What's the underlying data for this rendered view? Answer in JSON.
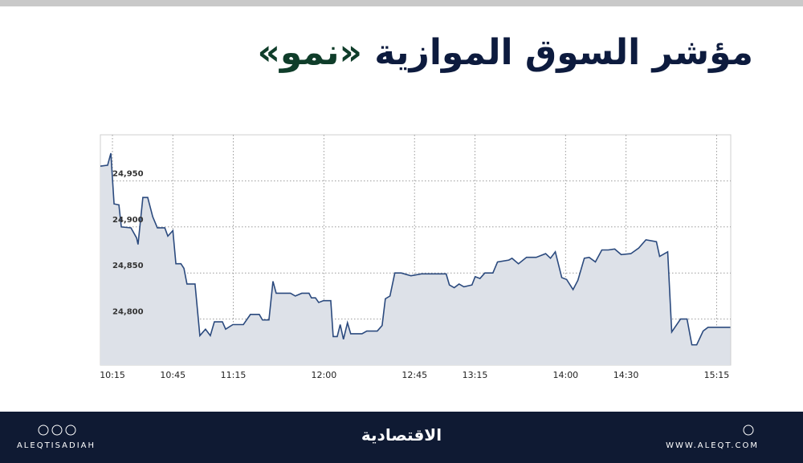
{
  "chart_data": {
    "type": "line",
    "title": [
      "مؤشر السوق الموازية",
      "«نمو»"
    ],
    "x": [
      609,
      612.6,
      614.2,
      615.8,
      618.2,
      619.4,
      624.2,
      627,
      627.7,
      630.1,
      632.5,
      635,
      637.3,
      641,
      642.5,
      645,
      646.5,
      649,
      650.5,
      652,
      656,
      658.4,
      661.2,
      663.6,
      665.6,
      669.6,
      671.2,
      674.8,
      680,
      683.5,
      687.9,
      689.5,
      692.7,
      694.7,
      696.3,
      703.4,
      705.8,
      709,
      712.6,
      713.8,
      715.8,
      717.4,
      719.8,
      723.4,
      724.6,
      726.6,
      728.1,
      729.7,
      731.7,
      733.3,
      738.9,
      741.3,
      746.5,
      748.9,
      750.5,
      752.8,
      755.2,
      758.4,
      763.2,
      768.4,
      780.7,
      782.3,
      784.7,
      787.1,
      789.5,
      793.5,
      795.1,
      797.5,
      799.9,
      803.9,
      806.2,
      811.8,
      813.4,
      816.6,
      820.6,
      825.4,
      830.1,
      832.5,
      834.9,
      838.1,
      840.5,
      843.7,
      846.1,
      849.3,
      851.7,
      854.8,
      858,
      861.2,
      864.4,
      867.6,
      872.4,
      876.3,
      879.9,
      885.1,
      886.7,
      890.7,
      892.7,
      897.1,
      900.3,
      902.7,
      905.1,
      908.3,
      910.7,
      921.8
    ],
    "series": [
      {
        "color": "#2b4a7e",
        "fill": "#dde1e8",
        "values": [
          24966,
          24967,
          24980,
          24925,
          24924,
          24900,
          24899,
          24888,
          24881,
          24932,
          24932,
          24911,
          24899,
          24899,
          24890,
          24896,
          24860,
          24860,
          24855,
          24838,
          24838,
          24782,
          24789,
          24782,
          24797,
          24797,
          24789,
          24794,
          24794,
          24805,
          24805,
          24799,
          24799,
          24841,
          24828,
          24828,
          24825,
          24828,
          24828,
          24823,
          24823,
          24818,
          24820,
          24820,
          24781,
          24781,
          24794,
          24778,
          24796,
          24784,
          24784,
          24787,
          24787,
          24793,
          24822,
          24825,
          24850,
          24850,
          24847,
          24849,
          24849,
          24837,
          24834,
          24838,
          24835,
          24837,
          24846,
          24844,
          24850,
          24850,
          24862,
          24864,
          24866,
          24860,
          24867,
          24867,
          24871,
          24866,
          24873,
          24845,
          24843,
          24832,
          24842,
          24866,
          24867,
          24862,
          24875,
          24875,
          24876,
          24870,
          24871,
          24877,
          24886,
          24884,
          24868,
          24873,
          24786,
          24800,
          24800,
          24772,
          24772,
          24787,
          24791,
          24791
        ]
      }
    ],
    "xlim": [
      609,
      922
    ],
    "xticks": [
      {
        "value": 615,
        "label": "10:15"
      },
      {
        "value": 645,
        "label": "10:45"
      },
      {
        "value": 675,
        "label": "11:15"
      },
      {
        "value": 720,
        "label": "12:00"
      },
      {
        "value": 765,
        "label": "12:45"
      },
      {
        "value": 795,
        "label": "13:15"
      },
      {
        "value": 840,
        "label": "14:00"
      },
      {
        "value": 870,
        "label": "14:30"
      },
      {
        "value": 915,
        "label": "15:15"
      }
    ],
    "ylim": [
      24750,
      25000
    ],
    "yticks": [
      {
        "value": 24800,
        "label": "24,800"
      },
      {
        "value": 24850,
        "label": "24,850"
      },
      {
        "value": 24900,
        "label": "24,900"
      },
      {
        "value": 24950,
        "label": "24,950"
      }
    ],
    "grid": true
  },
  "footer": {
    "handle": "ALEQTISADIAH",
    "logo": "الاقتصادية",
    "website": "WWW.ALEQT.COM"
  }
}
